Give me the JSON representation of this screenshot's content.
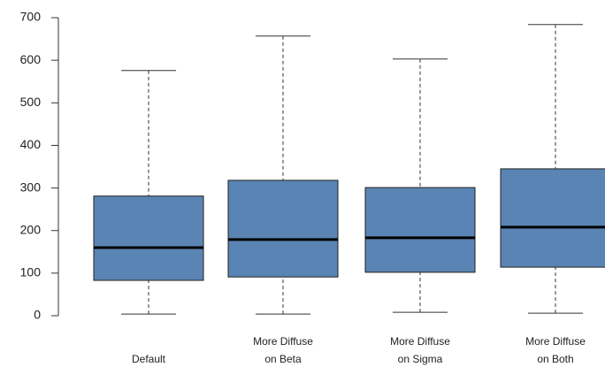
{
  "chart_data": {
    "type": "boxplot",
    "categories": [
      [
        "Default"
      ],
      [
        "More Diffuse",
        "on Beta"
      ],
      [
        "More Diffuse",
        "on Sigma"
      ],
      [
        "More Diffuse",
        "on Both"
      ]
    ],
    "min": [
      4,
      4,
      8,
      6
    ],
    "q1": [
      83,
      91,
      102,
      114
    ],
    "median": [
      160,
      179,
      183,
      208
    ],
    "q3": [
      281,
      318,
      301,
      345
    ],
    "max": [
      576,
      657,
      603,
      684
    ],
    "color": "#5a84b3",
    "ylim": [
      0,
      700
    ],
    "yticks": [
      0,
      100,
      200,
      300,
      400,
      500,
      600,
      700
    ]
  }
}
